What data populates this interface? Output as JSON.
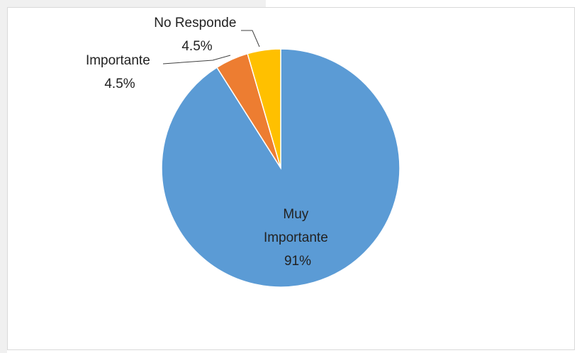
{
  "chart_data": {
    "type": "pie",
    "slices": [
      {
        "label": "Muy Importante",
        "value": 91,
        "display": "91%",
        "color": "#5b9bd5"
      },
      {
        "label": "Importante",
        "value": 4.5,
        "display": "4.5%",
        "color": "#ed7d31"
      },
      {
        "label": "No Responde",
        "value": 4.5,
        "display": "4.5%",
        "color": "#ffc000"
      }
    ],
    "label_lines": {
      "muy_importante": [
        "Muy",
        "Importante",
        "91%"
      ],
      "importante": [
        "Importante",
        "4.5%"
      ],
      "no_responde": [
        "No Responde",
        "4.5%"
      ]
    },
    "legend": "none",
    "start_angle": "12 o'clock",
    "direction": "clockwise"
  }
}
